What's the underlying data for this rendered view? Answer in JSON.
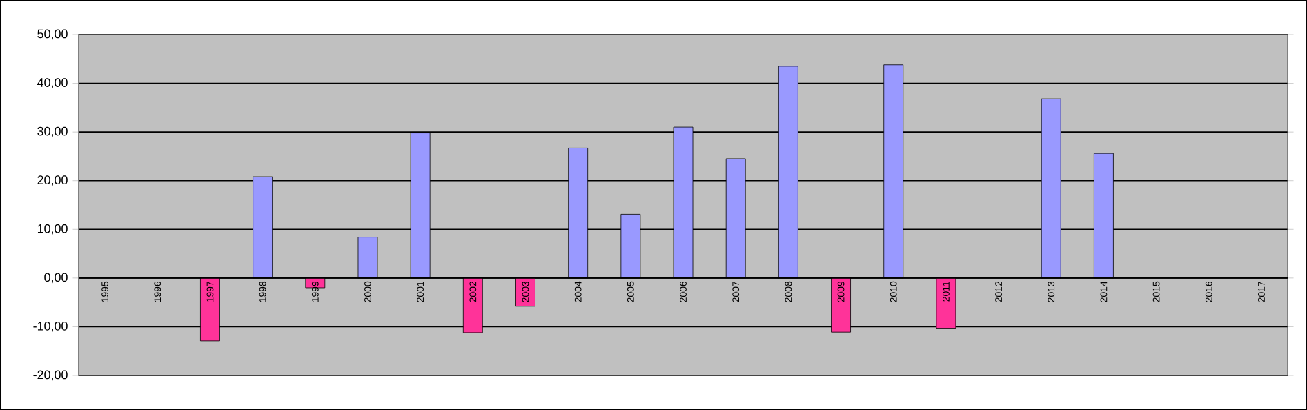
{
  "chart_data": {
    "type": "bar",
    "categories": [
      "1995",
      "1996",
      "1997",
      "1998",
      "1999",
      "2000",
      "2001",
      "2002",
      "2003",
      "2004",
      "2005",
      "2006",
      "2007",
      "2008",
      "2009",
      "2010",
      "2011",
      "2012",
      "2013",
      "2014",
      "2015",
      "2016",
      "2017"
    ],
    "values": [
      null,
      null,
      -12.9,
      20.8,
      -2.0,
      8.4,
      29.8,
      -11.2,
      -5.8,
      26.7,
      13.1,
      31.0,
      24.5,
      43.5,
      -11.1,
      43.8,
      -10.3,
      null,
      36.8,
      25.6,
      null,
      null,
      null
    ],
    "colors": [
      "#9999ff",
      "#9999ff",
      "#ff3399",
      "#9999ff",
      "#ff3399",
      "#9999ff",
      "#9999ff",
      "#ff3399",
      "#ff3399",
      "#9999ff",
      "#9999ff",
      "#9999ff",
      "#9999ff",
      "#9999ff",
      "#ff3399",
      "#9999ff",
      "#ff3399",
      "#9999ff",
      "#9999ff",
      "#9999ff",
      "#9999ff",
      "#9999ff",
      "#9999ff"
    ],
    "ylim": [
      -20,
      50
    ],
    "yticks": [
      {
        "value": -20,
        "label": "-20,00"
      },
      {
        "value": -10,
        "label": "-10,00"
      },
      {
        "value": 0,
        "label": "0,00"
      },
      {
        "value": 10,
        "label": "10,00"
      },
      {
        "value": 20,
        "label": "20,00"
      },
      {
        "value": 30,
        "label": "30,00"
      },
      {
        "value": 40,
        "label": "40,00"
      },
      {
        "value": 50,
        "label": "50,00"
      }
    ],
    "grid": "y"
  }
}
